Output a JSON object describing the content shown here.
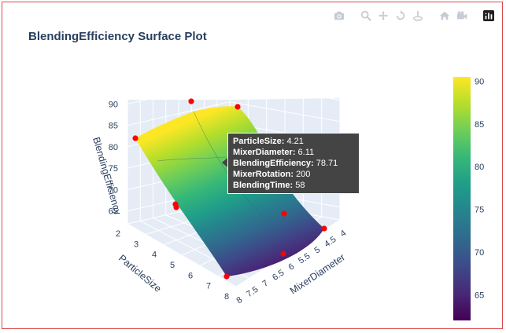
{
  "title": "BlendingEfficiency Surface Plot",
  "modebar": [
    {
      "name": "camera-icon"
    },
    {
      "name": "zoom-icon"
    },
    {
      "name": "pan-icon"
    },
    {
      "name": "orbit-icon"
    },
    {
      "name": "turntable-icon"
    },
    {
      "name": "home-icon"
    },
    {
      "name": "camera-view-icon"
    },
    {
      "name": "plotly-logo-icon"
    }
  ],
  "chart_data": {
    "type": "surface",
    "title": "BlendingEfficiency Surface Plot",
    "x_label": "ParticleSize",
    "y_label": "MixerDiameter",
    "z_label": "BlendingEfficiency",
    "x_ticks": [
      "2",
      "3",
      "4",
      "5",
      "6",
      "7",
      "8"
    ],
    "y_ticks": [
      "4",
      "4.5",
      "5",
      "5.5",
      "6",
      "6.5",
      "7",
      "7.5",
      "8"
    ],
    "z_ticks": [
      "65",
      "70",
      "75",
      "80",
      "85",
      "90"
    ],
    "z_range": [
      62,
      91
    ],
    "colorscale": "Viridis",
    "colorbar_ticks": [
      "65",
      "70",
      "75",
      "80",
      "85",
      "90"
    ],
    "colorbar_range": [
      62,
      90.5
    ],
    "scatter_points": [
      {
        "ParticleSize": 2,
        "MixerDiameter": 4,
        "BlendingEfficiency": 84
      },
      {
        "ParticleSize": 3,
        "MixerDiameter": 6,
        "BlendingEfficiency": 90
      },
      {
        "ParticleSize": 2.5,
        "MixerDiameter": 7,
        "BlendingEfficiency": 89
      },
      {
        "ParticleSize": 5,
        "MixerDiameter": 4.5,
        "BlendingEfficiency": 72
      },
      {
        "ParticleSize": 5,
        "MixerDiameter": 4.5,
        "BlendingEfficiency": 71.5
      },
      {
        "ParticleSize": 6,
        "MixerDiameter": 7.5,
        "BlendingEfficiency": 70
      },
      {
        "ParticleSize": 8,
        "MixerDiameter": 4,
        "BlendingEfficiency": 63
      },
      {
        "ParticleSize": 8,
        "MixerDiameter": 6,
        "BlendingEfficiency": 62
      },
      {
        "ParticleSize": 7,
        "MixerDiameter": 8,
        "BlendingEfficiency": 63
      }
    ],
    "hover": {
      "ParticleSize": "4.21",
      "MixerDiameter": "6.11",
      "BlendingEfficiency": "78.71",
      "MixerRotation": "200",
      "BlendingTime": "58"
    }
  },
  "hover_labels": {
    "particle": "ParticleSize:",
    "diameter": "MixerDiameter:",
    "efficiency": "BlendingEfficiency:",
    "rotation": "MixerRotation:",
    "time": "BlendingTime:"
  }
}
